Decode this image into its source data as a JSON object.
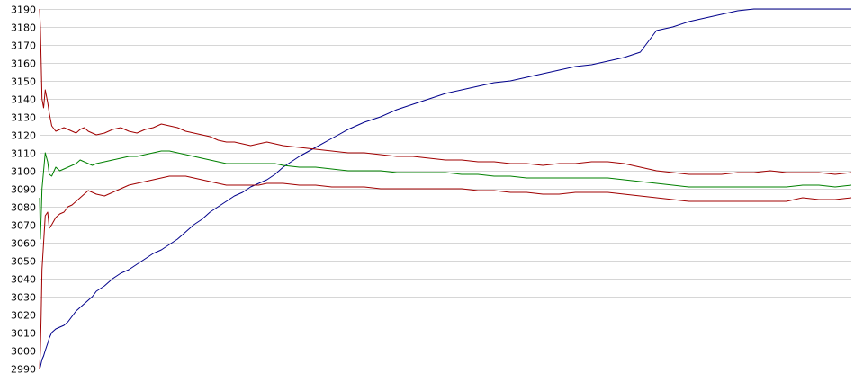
{
  "chart_data": {
    "type": "line",
    "title": "",
    "xlabel": "",
    "ylabel": "",
    "ylim": [
      2990,
      3190
    ],
    "yticks": [
      2990,
      3000,
      3010,
      3020,
      3030,
      3040,
      3050,
      3060,
      3070,
      3080,
      3090,
      3100,
      3110,
      3120,
      3130,
      3140,
      3150,
      3160,
      3170,
      3180,
      3190
    ],
    "xlim": [
      0,
      1000
    ],
    "x_ticks_shown": false,
    "grid": {
      "horizontal": true,
      "vertical": false
    },
    "legend": "none",
    "series": [
      {
        "color": "#00008b",
        "x": [
          0,
          1,
          2,
          3,
          5,
          7,
          10,
          12,
          15,
          20,
          25,
          30,
          35,
          40,
          45,
          50,
          55,
          60,
          65,
          70,
          80,
          90,
          100,
          110,
          120,
          130,
          140,
          150,
          160,
          170,
          180,
          190,
          200,
          210,
          220,
          230,
          240,
          250,
          260,
          270,
          280,
          290,
          300,
          320,
          340,
          360,
          380,
          400,
          420,
          440,
          460,
          480,
          500,
          520,
          540,
          560,
          580,
          600,
          620,
          640,
          660,
          680,
          700,
          720,
          740,
          760,
          780,
          800,
          820,
          840,
          860,
          880,
          900,
          920,
          940,
          960,
          980,
          1000
        ],
        "values": [
          2990,
          2991,
          2993,
          2995,
          2997,
          3000,
          3004,
          3007,
          3010,
          3012,
          3013,
          3014,
          3016,
          3019,
          3022,
          3024,
          3026,
          3028,
          3030,
          3033,
          3036,
          3040,
          3043,
          3045,
          3048,
          3051,
          3054,
          3056,
          3059,
          3062,
          3066,
          3070,
          3073,
          3077,
          3080,
          3083,
          3086,
          3088,
          3091,
          3093,
          3095,
          3098,
          3102,
          3108,
          3113,
          3118,
          3123,
          3127,
          3130,
          3134,
          3137,
          3140,
          3143,
          3145,
          3147,
          3149,
          3150,
          3152,
          3154,
          3156,
          3158,
          3159,
          3161,
          3163,
          3166,
          3178,
          3180,
          3183,
          3185,
          3187,
          3189,
          3190,
          3190,
          3190,
          3190,
          3190,
          3190,
          3190
        ]
      },
      {
        "color": "#a00000",
        "x": [
          0,
          1,
          2,
          3,
          5,
          7,
          10,
          12,
          15,
          20,
          25,
          30,
          35,
          40,
          45,
          50,
          55,
          60,
          65,
          70,
          80,
          90,
          100,
          110,
          120,
          130,
          140,
          150,
          160,
          170,
          180,
          190,
          200,
          210,
          220,
          230,
          240,
          250,
          260,
          270,
          280,
          290,
          300,
          320,
          340,
          360,
          380,
          400,
          420,
          440,
          460,
          480,
          500,
          520,
          540,
          560,
          580,
          600,
          620,
          640,
          660,
          680,
          700,
          720,
          740,
          760,
          780,
          800,
          820,
          840,
          860,
          880,
          900,
          920,
          940,
          960,
          980,
          1000
        ],
        "values": [
          3190,
          3180,
          3160,
          3140,
          3135,
          3145,
          3138,
          3132,
          3125,
          3122,
          3123,
          3124,
          3123,
          3122,
          3121,
          3123,
          3124,
          3122,
          3121,
          3120,
          3121,
          3123,
          3124,
          3122,
          3121,
          3123,
          3124,
          3126,
          3125,
          3124,
          3122,
          3121,
          3120,
          3119,
          3117,
          3116,
          3116,
          3115,
          3114,
          3115,
          3116,
          3115,
          3114,
          3113,
          3112,
          3111,
          3110,
          3110,
          3109,
          3108,
          3108,
          3107,
          3106,
          3106,
          3105,
          3105,
          3104,
          3104,
          3103,
          3104,
          3104,
          3105,
          3105,
          3104,
          3102,
          3100,
          3099,
          3098,
          3098,
          3098,
          3099,
          3099,
          3100,
          3099,
          3099,
          3099,
          3098,
          3099
        ]
      },
      {
        "color": "#008000",
        "x": [
          0,
          1,
          2,
          3,
          5,
          7,
          10,
          12,
          15,
          20,
          25,
          30,
          35,
          40,
          45,
          50,
          55,
          60,
          65,
          70,
          80,
          90,
          100,
          110,
          120,
          130,
          140,
          150,
          160,
          170,
          180,
          190,
          200,
          210,
          220,
          230,
          240,
          250,
          260,
          270,
          280,
          290,
          300,
          320,
          340,
          360,
          380,
          400,
          420,
          440,
          460,
          480,
          500,
          520,
          540,
          560,
          580,
          600,
          620,
          640,
          660,
          680,
          700,
          720,
          740,
          760,
          780,
          800,
          820,
          840,
          860,
          880,
          900,
          920,
          940,
          960,
          980,
          1000
        ],
        "values": [
          3085,
          3062,
          3075,
          3090,
          3100,
          3110,
          3105,
          3098,
          3097,
          3102,
          3100,
          3101,
          3102,
          3103,
          3104,
          3106,
          3105,
          3104,
          3103,
          3104,
          3105,
          3106,
          3107,
          3108,
          3108,
          3109,
          3110,
          3111,
          3111,
          3110,
          3109,
          3108,
          3107,
          3106,
          3105,
          3104,
          3104,
          3104,
          3104,
          3104,
          3104,
          3104,
          3103,
          3102,
          3102,
          3101,
          3100,
          3100,
          3100,
          3099,
          3099,
          3099,
          3099,
          3098,
          3098,
          3097,
          3097,
          3096,
          3096,
          3096,
          3096,
          3096,
          3096,
          3095,
          3094,
          3093,
          3092,
          3091,
          3091,
          3091,
          3091,
          3091,
          3091,
          3091,
          3092,
          3092,
          3091,
          3092
        ]
      },
      {
        "color": "#a00000",
        "x": [
          0,
          1,
          2,
          3,
          5,
          7,
          10,
          12,
          15,
          20,
          25,
          30,
          35,
          40,
          45,
          50,
          55,
          60,
          65,
          70,
          80,
          90,
          100,
          110,
          120,
          130,
          140,
          150,
          160,
          170,
          180,
          190,
          200,
          210,
          220,
          230,
          240,
          250,
          260,
          270,
          280,
          290,
          300,
          320,
          340,
          360,
          380,
          400,
          420,
          440,
          460,
          480,
          500,
          520,
          540,
          560,
          580,
          600,
          620,
          640,
          660,
          680,
          700,
          720,
          740,
          760,
          780,
          800,
          820,
          840,
          860,
          880,
          900,
          920,
          940,
          960,
          980,
          1000
        ],
        "values": [
          2990,
          3000,
          3020,
          3045,
          3060,
          3075,
          3077,
          3068,
          3070,
          3074,
          3076,
          3077,
          3080,
          3081,
          3083,
          3085,
          3087,
          3089,
          3088,
          3087,
          3086,
          3088,
          3090,
          3092,
          3093,
          3094,
          3095,
          3096,
          3097,
          3097,
          3097,
          3096,
          3095,
          3094,
          3093,
          3092,
          3092,
          3092,
          3092,
          3092,
          3093,
          3093,
          3093,
          3092,
          3092,
          3091,
          3091,
          3091,
          3090,
          3090,
          3090,
          3090,
          3090,
          3090,
          3089,
          3089,
          3088,
          3088,
          3087,
          3087,
          3088,
          3088,
          3088,
          3087,
          3086,
          3085,
          3084,
          3083,
          3083,
          3083,
          3083,
          3083,
          3083,
          3083,
          3085,
          3084,
          3084,
          3085
        ]
      }
    ]
  }
}
